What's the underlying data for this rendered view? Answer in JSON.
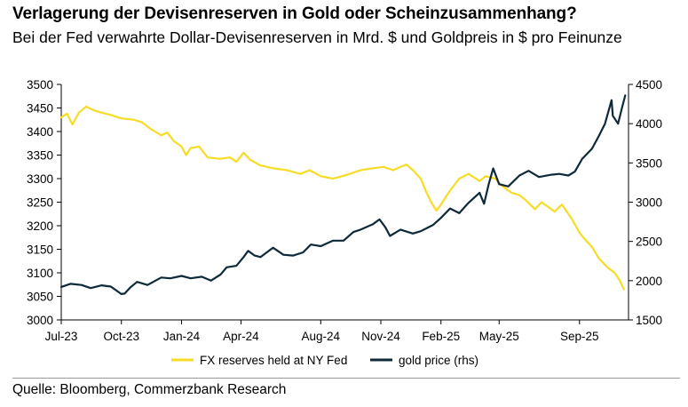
{
  "header": {
    "title": "Verlagerung der Devisenreserven in Gold oder Scheinzusammenhang?",
    "subtitle": "Bei der Fed verwahrte Dollar-Devisenreserven in Mrd. $ und Goldpreis in $ pro Feinunze"
  },
  "footer": {
    "source": "Quelle: Bloomberg, Commerzbank Research"
  },
  "colors": {
    "fx_line": "#f7dc26",
    "gold_line": "#0e2a3a",
    "axis": "#000000"
  },
  "chart_data": {
    "type": "line",
    "title": "Verlagerung der Devisenreserven in Gold oder Scheinzusammenhang?",
    "x_tick_labels": [
      "Jul-23",
      "Oct-23",
      "Jan-24",
      "Apr-24",
      "Aug-24",
      "Nov-24",
      "Feb-25",
      "May-25",
      "Sep-25"
    ],
    "x_tick_dates": [
      "2023-07-01",
      "2023-10-01",
      "2024-01-01",
      "2024-04-01",
      "2024-08-01",
      "2024-11-01",
      "2025-02-01",
      "2025-05-01",
      "2025-09-01"
    ],
    "x_range": [
      "2023-07-01",
      "2025-11-15"
    ],
    "y_left": {
      "ticks": [
        3000,
        3050,
        3100,
        3150,
        3200,
        3250,
        3300,
        3350,
        3400,
        3450,
        3500
      ],
      "range": [
        3000,
        3500
      ]
    },
    "y_right": {
      "ticks": [
        1500,
        2000,
        2500,
        3000,
        3500,
        4000,
        4500
      ],
      "range": [
        1500,
        4500
      ]
    },
    "grid": false,
    "legend_position": "bottom",
    "series": [
      {
        "name": "FX reserves held at NY Fed",
        "axis": "left",
        "color": "#f7dc26",
        "points": [
          [
            "2023-07-01",
            3430
          ],
          [
            "2023-07-10",
            3438
          ],
          [
            "2023-07-18",
            3415
          ],
          [
            "2023-07-28",
            3440
          ],
          [
            "2023-08-08",
            3453
          ],
          [
            "2023-08-20",
            3445
          ],
          [
            "2023-09-01",
            3440
          ],
          [
            "2023-09-15",
            3435
          ],
          [
            "2023-10-01",
            3428
          ],
          [
            "2023-10-20",
            3425
          ],
          [
            "2023-11-01",
            3420
          ],
          [
            "2023-11-15",
            3405
          ],
          [
            "2023-12-01",
            3392
          ],
          [
            "2023-12-10",
            3398
          ],
          [
            "2023-12-20",
            3380
          ],
          [
            "2024-01-01",
            3368
          ],
          [
            "2024-01-08",
            3350
          ],
          [
            "2024-01-15",
            3365
          ],
          [
            "2024-01-28",
            3368
          ],
          [
            "2024-02-10",
            3345
          ],
          [
            "2024-02-28",
            3342
          ],
          [
            "2024-03-15",
            3345
          ],
          [
            "2024-03-25",
            3336
          ],
          [
            "2024-04-05",
            3355
          ],
          [
            "2024-04-15",
            3340
          ],
          [
            "2024-05-01",
            3328
          ],
          [
            "2024-05-20",
            3322
          ],
          [
            "2024-06-10",
            3318
          ],
          [
            "2024-07-01",
            3310
          ],
          [
            "2024-07-15",
            3318
          ],
          [
            "2024-08-01",
            3305
          ],
          [
            "2024-08-20",
            3300
          ],
          [
            "2024-09-10",
            3308
          ],
          [
            "2024-10-01",
            3318
          ],
          [
            "2024-10-20",
            3322
          ],
          [
            "2024-11-05",
            3325
          ],
          [
            "2024-11-20",
            3318
          ],
          [
            "2024-12-01",
            3325
          ],
          [
            "2024-12-10",
            3330
          ],
          [
            "2024-12-20",
            3318
          ],
          [
            "2025-01-01",
            3300
          ],
          [
            "2025-01-10",
            3270
          ],
          [
            "2025-01-17",
            3250
          ],
          [
            "2025-01-25",
            3232
          ],
          [
            "2025-02-01",
            3245
          ],
          [
            "2025-02-15",
            3275
          ],
          [
            "2025-03-01",
            3300
          ],
          [
            "2025-03-15",
            3310
          ],
          [
            "2025-04-01",
            3295
          ],
          [
            "2025-04-10",
            3305
          ],
          [
            "2025-04-25",
            3300
          ],
          [
            "2025-05-05",
            3285
          ],
          [
            "2025-05-20",
            3270
          ],
          [
            "2025-06-01",
            3265
          ],
          [
            "2025-06-10",
            3255
          ],
          [
            "2025-06-25",
            3235
          ],
          [
            "2025-07-05",
            3250
          ],
          [
            "2025-07-15",
            3240
          ],
          [
            "2025-07-25",
            3230
          ],
          [
            "2025-08-05",
            3245
          ],
          [
            "2025-08-20",
            3215
          ],
          [
            "2025-09-01",
            3185
          ],
          [
            "2025-09-10",
            3170
          ],
          [
            "2025-09-20",
            3155
          ],
          [
            "2025-10-01",
            3130
          ],
          [
            "2025-10-15",
            3110
          ],
          [
            "2025-10-25",
            3100
          ],
          [
            "2025-11-01",
            3085
          ],
          [
            "2025-11-08",
            3065
          ]
        ]
      },
      {
        "name": "gold price (rhs)",
        "axis": "right",
        "color": "#0e2a3a",
        "points": [
          [
            "2023-07-01",
            1920
          ],
          [
            "2023-07-15",
            1960
          ],
          [
            "2023-08-01",
            1945
          ],
          [
            "2023-08-15",
            1905
          ],
          [
            "2023-09-01",
            1940
          ],
          [
            "2023-09-15",
            1925
          ],
          [
            "2023-10-01",
            1830
          ],
          [
            "2023-10-06",
            1835
          ],
          [
            "2023-10-15",
            1915
          ],
          [
            "2023-10-25",
            1985
          ],
          [
            "2023-11-10",
            1945
          ],
          [
            "2023-12-01",
            2040
          ],
          [
            "2023-12-15",
            2030
          ],
          [
            "2024-01-01",
            2060
          ],
          [
            "2024-01-15",
            2030
          ],
          [
            "2024-02-01",
            2050
          ],
          [
            "2024-02-15",
            2000
          ],
          [
            "2024-03-01",
            2080
          ],
          [
            "2024-03-10",
            2170
          ],
          [
            "2024-03-25",
            2190
          ],
          [
            "2024-04-05",
            2300
          ],
          [
            "2024-04-12",
            2380
          ],
          [
            "2024-04-22",
            2320
          ],
          [
            "2024-05-01",
            2300
          ],
          [
            "2024-05-20",
            2420
          ],
          [
            "2024-06-05",
            2330
          ],
          [
            "2024-06-20",
            2320
          ],
          [
            "2024-07-05",
            2360
          ],
          [
            "2024-07-17",
            2460
          ],
          [
            "2024-08-01",
            2440
          ],
          [
            "2024-08-20",
            2510
          ],
          [
            "2024-09-05",
            2510
          ],
          [
            "2024-09-20",
            2620
          ],
          [
            "2024-10-01",
            2650
          ],
          [
            "2024-10-20",
            2720
          ],
          [
            "2024-10-30",
            2780
          ],
          [
            "2024-11-08",
            2680
          ],
          [
            "2024-11-15",
            2570
          ],
          [
            "2024-12-01",
            2650
          ],
          [
            "2024-12-20",
            2600
          ],
          [
            "2025-01-01",
            2630
          ],
          [
            "2025-01-20",
            2710
          ],
          [
            "2025-02-01",
            2800
          ],
          [
            "2025-02-15",
            2920
          ],
          [
            "2025-03-01",
            2860
          ],
          [
            "2025-03-15",
            2990
          ],
          [
            "2025-04-01",
            3120
          ],
          [
            "2025-04-08",
            2980
          ],
          [
            "2025-04-15",
            3230
          ],
          [
            "2025-04-22",
            3430
          ],
          [
            "2025-05-01",
            3230
          ],
          [
            "2025-05-15",
            3200
          ],
          [
            "2025-06-01",
            3340
          ],
          [
            "2025-06-15",
            3400
          ],
          [
            "2025-07-01",
            3320
          ],
          [
            "2025-07-20",
            3350
          ],
          [
            "2025-08-01",
            3360
          ],
          [
            "2025-08-15",
            3340
          ],
          [
            "2025-08-25",
            3390
          ],
          [
            "2025-09-05",
            3550
          ],
          [
            "2025-09-20",
            3680
          ],
          [
            "2025-10-01",
            3850
          ],
          [
            "2025-10-10",
            4000
          ],
          [
            "2025-10-20",
            4300
          ],
          [
            "2025-10-22",
            4100
          ],
          [
            "2025-10-30",
            4000
          ],
          [
            "2025-11-05",
            4200
          ],
          [
            "2025-11-10",
            4360
          ]
        ]
      }
    ]
  }
}
